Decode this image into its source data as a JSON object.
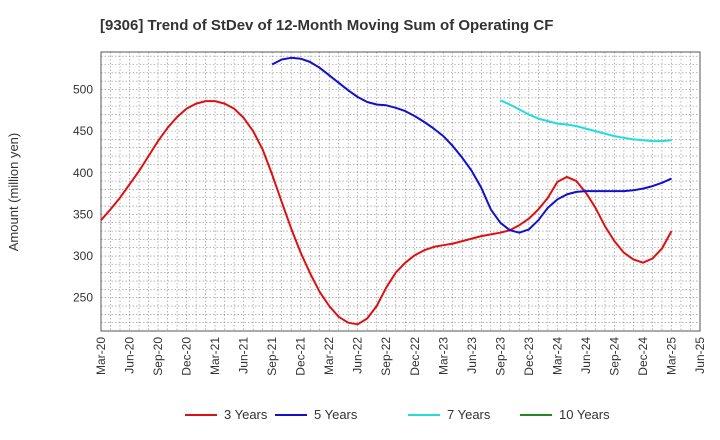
{
  "chart_data": {
    "type": "line",
    "title": "[9306]  Trend of StDev of 12-Month Moving Sum of Operating CF",
    "ylabel": "Amount (million yen)",
    "xlabel": "",
    "ylim": [
      210,
      545
    ],
    "yticks": [
      250,
      300,
      350,
      400,
      450,
      500
    ],
    "xticks": [
      "Mar-20",
      "Jun-20",
      "Sep-20",
      "Dec-20",
      "Mar-21",
      "Jun-21",
      "Sep-21",
      "Dec-21",
      "Mar-22",
      "Jun-22",
      "Sep-22",
      "Dec-22",
      "Mar-23",
      "Jun-23",
      "Sep-23",
      "Dec-23",
      "Mar-24",
      "Jun-24",
      "Sep-24",
      "Dec-24",
      "Mar-25",
      "Jun-25"
    ],
    "grid": true,
    "legend_position": "bottom",
    "series": [
      {
        "name": "3 Years",
        "color": "#dd1111",
        "x": [
          "Mar-20",
          "Apr-20",
          "May-20",
          "Jun-20",
          "Jul-20",
          "Aug-20",
          "Sep-20",
          "Oct-20",
          "Nov-20",
          "Dec-20",
          "Jan-21",
          "Feb-21",
          "Mar-21",
          "Apr-21",
          "May-21",
          "Jun-21",
          "Jul-21",
          "Aug-21",
          "Sep-21",
          "Oct-21",
          "Nov-21",
          "Dec-21",
          "Jan-22",
          "Feb-22",
          "Mar-22",
          "Apr-22",
          "May-22",
          "Jun-22",
          "Jul-22",
          "Aug-22",
          "Sep-22",
          "Oct-22",
          "Nov-22",
          "Dec-22",
          "Jan-23",
          "Feb-23",
          "Mar-23",
          "Apr-23",
          "May-23",
          "Jun-23",
          "Jul-23",
          "Aug-23",
          "Sep-23",
          "Oct-23",
          "Nov-23",
          "Dec-23",
          "Jan-24",
          "Feb-24",
          "Mar-24",
          "Apr-24",
          "May-24",
          "Jun-24",
          "Jul-24",
          "Aug-24",
          "Sep-24",
          "Oct-24",
          "Nov-24",
          "Dec-24",
          "Jan-25",
          "Feb-25",
          "Mar-25"
        ],
        "values": [
          343,
          356,
          370,
          386,
          402,
          420,
          438,
          454,
          467,
          477,
          483,
          486,
          486,
          483,
          477,
          466,
          450,
          428,
          398,
          365,
          333,
          304,
          279,
          257,
          240,
          227,
          220,
          218,
          225,
          240,
          262,
          280,
          292,
          301,
          307,
          311,
          313,
          315,
          318,
          321,
          324,
          326,
          328,
          331,
          337,
          345,
          356,
          370,
          389,
          395,
          390,
          376,
          358,
          336,
          318,
          304,
          296,
          292,
          297,
          309,
          330
        ]
      },
      {
        "name": "5 Years",
        "color": "#1111cc",
        "x": [
          "Sep-21",
          "Oct-21",
          "Nov-21",
          "Dec-21",
          "Jan-22",
          "Feb-22",
          "Mar-22",
          "Apr-22",
          "May-22",
          "Jun-22",
          "Jul-22",
          "Aug-22",
          "Sep-22",
          "Oct-22",
          "Nov-22",
          "Dec-22",
          "Jan-23",
          "Feb-23",
          "Mar-23",
          "Apr-23",
          "May-23",
          "Jun-23",
          "Jul-23",
          "Aug-23",
          "Sep-23",
          "Oct-23",
          "Nov-23",
          "Dec-23",
          "Jan-24",
          "Feb-24",
          "Mar-24",
          "Apr-24",
          "May-24",
          "Jun-24",
          "Jul-24",
          "Aug-24",
          "Sep-24",
          "Oct-24",
          "Nov-24",
          "Dec-24",
          "Jan-25",
          "Feb-25",
          "Mar-25"
        ],
        "values": [
          530,
          536,
          538,
          537,
          533,
          526,
          517,
          508,
          499,
          491,
          485,
          482,
          481,
          478,
          474,
          468,
          461,
          453,
          444,
          432,
          418,
          402,
          382,
          356,
          340,
          331,
          328,
          332,
          343,
          358,
          368,
          374,
          377,
          378,
          378,
          378,
          378,
          378,
          379,
          381,
          384,
          388,
          393
        ]
      },
      {
        "name": "7 Years",
        "color": "#22dddd",
        "x": [
          "Sep-23",
          "Oct-23",
          "Nov-23",
          "Dec-23",
          "Jan-24",
          "Feb-24",
          "Mar-24",
          "Apr-24",
          "May-24",
          "Jun-24",
          "Jul-24",
          "Aug-24",
          "Sep-24",
          "Oct-24",
          "Nov-24",
          "Dec-24",
          "Jan-25",
          "Feb-25",
          "Mar-25"
        ],
        "values": [
          487,
          482,
          476,
          470,
          465,
          462,
          459,
          458,
          456,
          453,
          450,
          447,
          444,
          442,
          440,
          439,
          438,
          438,
          439
        ]
      },
      {
        "name": "10 Years",
        "color": "#228822",
        "x": [],
        "values": []
      }
    ]
  }
}
